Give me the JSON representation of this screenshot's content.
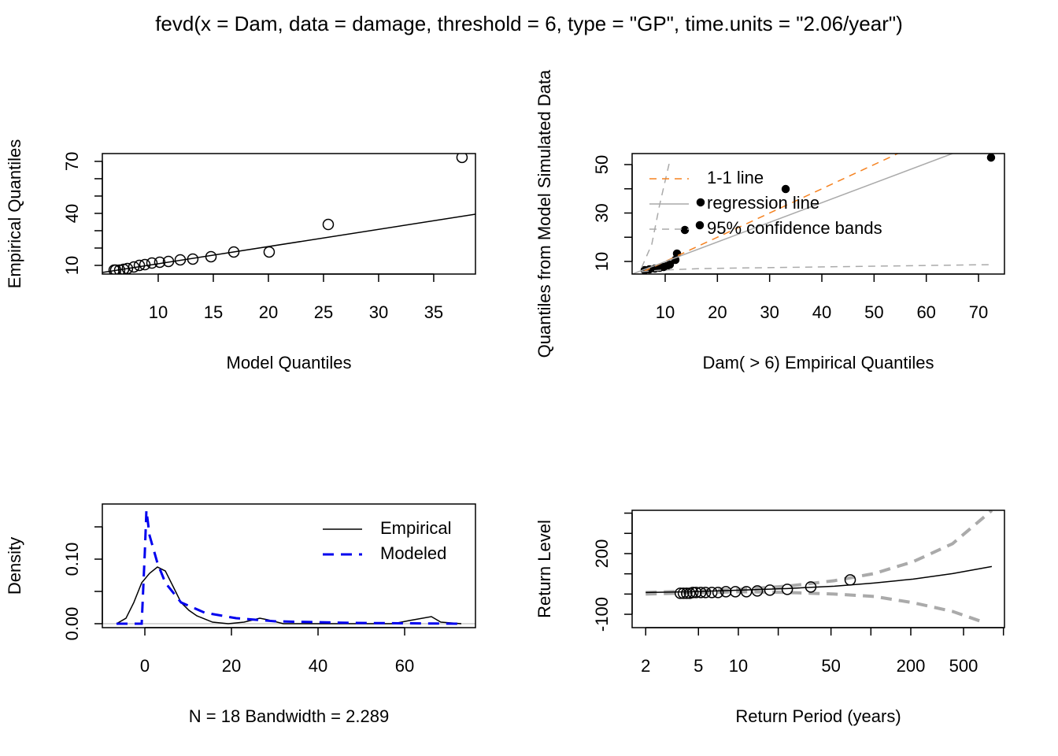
{
  "title": "fevd(x = Dam, data = damage, threshold = 6, type = \"GP\", time.units = \"2.06/year\")",
  "chart_data": [
    {
      "type": "scatter",
      "xlabel": "Model Quantiles",
      "ylabel": "Empirical Quantiles",
      "xlim": [
        4.93,
        38.79
      ],
      "ylim": [
        5,
        74.5
      ],
      "xticks": [
        10,
        15,
        20,
        25,
        30,
        35
      ],
      "yticks": [
        10,
        40,
        70
      ],
      "yminor_ticks": [
        20,
        30,
        50,
        60
      ],
      "series": [
        {
          "kind": "points",
          "style": "open",
          "color": "#000000",
          "x": [
            6.0,
            6.14,
            6.5,
            6.86,
            7.21,
            7.79,
            8.29,
            8.79,
            9.43,
            10.14,
            10.93,
            12.0,
            13.14,
            14.79,
            16.86,
            20.07,
            25.43,
            37.57
          ],
          "values": [
            7.27,
            7.27,
            7.27,
            7.73,
            8.18,
            9.09,
            10.0,
            10.45,
            11.36,
            11.82,
            12.27,
            13.18,
            13.64,
            15.0,
            17.73,
            17.73,
            33.6,
            72.3
          ]
        },
        {
          "kind": "line",
          "style": "solid",
          "color": "#000000",
          "line_width": 1.5,
          "x": [
            4.93,
            38.79
          ],
          "values": [
            5.9,
            39.5
          ]
        }
      ]
    },
    {
      "type": "scatter",
      "xlabel": "Dam( > 6) Empirical Quantiles",
      "ylabel": "Quantiles from Model Simulated Data",
      "xlim": [
        3.67,
        74.97
      ],
      "ylim": [
        4.8,
        54.55
      ],
      "xticks": [
        10,
        20,
        30,
        40,
        50,
        60,
        70
      ],
      "yticks": [
        10,
        30,
        50
      ],
      "yminor_ticks": [
        20,
        40
      ],
      "legend": "topleft",
      "series": [
        {
          "kind": "points",
          "style": "filled",
          "color": "#000000",
          "x": [
            6.08,
            6.98,
            8.04,
            8.94,
            9.7,
            10.3,
            10.9,
            11.96,
            12.26,
            13.77,
            16.78,
            16.63,
            33.07,
            72.4
          ],
          "values": [
            6.42,
            6.75,
            7.07,
            7.4,
            7.72,
            8.05,
            8.7,
            10.65,
            13.25,
            23.0,
            34.4,
            24.96,
            39.9,
            52.9
          ]
        },
        {
          "name": "1-1 line",
          "kind": "line",
          "style": "dashed",
          "color": "#f58220",
          "line_width": 1.5,
          "x": [
            3.67,
            54.55
          ],
          "values": [
            3.67,
            54.55
          ]
        },
        {
          "name": "regression line",
          "kind": "line",
          "style": "solid",
          "color": "#aaaaaa",
          "line_width": 1.5,
          "x": [
            3.67,
            65.0
          ],
          "values": [
            4.8,
            54.55
          ]
        },
        {
          "name": "95% confidence bands",
          "kind": "line",
          "style": "dashed",
          "color": "#aaaaaa",
          "line_width": 1.5,
          "x": [
            5.48,
            7.44,
            8.94,
            10.75,
            null,
            5.48,
            9.25,
            16.78,
            72.57
          ],
          "values": [
            7.4,
            17.15,
            33.4,
            50.3,
            null,
            5.77,
            6.42,
            7.07,
            8.7
          ]
        }
      ]
    },
    {
      "type": "line",
      "xlabel": "N = 18   Bandwidth = 2.289",
      "ylabel": "Density",
      "xlim": [
        -9.82,
        76.36
      ],
      "ylim": [
        -0.0061,
        0.1854
      ],
      "xticks": [
        0,
        20,
        40,
        60
      ],
      "yticks": [
        {
          "value": 0,
          "label": "0.00"
        },
        {
          "value": 0.1,
          "label": "0.10"
        }
      ],
      "yminor_ticks": [
        0.05,
        0.15
      ],
      "hline": 0,
      "legend": "topright",
      "series": [
        {
          "name": "Empirical",
          "kind": "line",
          "style": "solid",
          "color": "#000000",
          "line_width": 1.5,
          "x": [
            -6.55,
            -4.36,
            -2.55,
            -0.73,
            1.09,
            2.91,
            4.73,
            6.55,
            8.36,
            10.18,
            12.0,
            15.64,
            19.27,
            22.91,
            26.55,
            28.36,
            32.0,
            57.45,
            61.09,
            66.18,
            68.36,
            73.09
          ],
          "values": [
            0,
            0.0085,
            0.0329,
            0.0634,
            0.078,
            0.0878,
            0.0817,
            0.0573,
            0.0329,
            0.0207,
            0.0122,
            0.0024,
            0,
            0.0024,
            0.0085,
            0.0061,
            0,
            0,
            0.0049,
            0.011,
            0.0024,
            0
          ]
        },
        {
          "name": "Modeled",
          "kind": "line",
          "style": "dashed",
          "color": "#0000ee",
          "line_width": 3,
          "x": [
            -6.55,
            -0.73,
            0,
            0.36,
            1.09,
            2.91,
            4.73,
            8.36,
            13.82,
            21.09,
            30.18,
            48.36,
            73.09
          ],
          "values": [
            0,
            0,
            0.112,
            0.1756,
            0.1366,
            0.0939,
            0.0634,
            0.0329,
            0.0171,
            0.0085,
            0.0037,
            0.0012,
            0
          ]
        }
      ]
    },
    {
      "type": "line",
      "xlabel": "Return Period (years)",
      "ylabel": "Return Level",
      "log_x": true,
      "xlim": [
        1.58,
        1018
      ],
      "ylim": [
        -166,
        414
      ],
      "xticks": [
        2,
        5,
        10,
        50,
        200,
        500
      ],
      "xminor_ticks": [
        20,
        100,
        1000
      ],
      "yticks": [
        -100,
        200
      ],
      "yminor_ticks": [
        0,
        100,
        300,
        400
      ],
      "series": [
        {
          "kind": "line",
          "style": "dashed",
          "color": "#aaaaaa",
          "line_width": 4,
          "x": [
            2,
            10.3,
            23.4,
            53.1,
            105.3,
            208.4,
            413,
            817,
            null,
            2,
            10.3,
            23.4,
            53.1,
            105.3,
            208.4,
            413,
            713
          ],
          "values": [
            7.8,
            23.4,
            39,
            66.2,
            101,
            160,
            249,
            413,
            null,
            0,
            11.7,
            7.8,
            0,
            -11.7,
            -42.9,
            -85.7,
            -140
          ]
        },
        {
          "kind": "line",
          "style": "solid",
          "color": "#000000",
          "line_width": 1.5,
          "x": [
            2,
            4.54,
            10.3,
            23.4,
            53.1,
            105.3,
            208.4,
            413,
            817
          ],
          "values": [
            7.8,
            11.7,
            19.5,
            27.3,
            39,
            54.5,
            74,
            101,
            136
          ]
        },
        {
          "kind": "points",
          "style": "open",
          "color": "#000000",
          "x": [
            3.65,
            3.85,
            4.07,
            4.3,
            4.54,
            4.8,
            5.21,
            5.65,
            6.31,
            7.03,
            8.06,
            9.5,
            11.5,
            13.9,
            17.3,
            23.4,
            35.2,
            69.8
          ],
          "values": [
            3.9,
            3.9,
            3.9,
            3.9,
            7.8,
            7.8,
            7.8,
            7.8,
            7.8,
            7.8,
            11.7,
            11.7,
            11.7,
            15.6,
            19.5,
            23.4,
            35,
            70
          ]
        }
      ]
    }
  ]
}
